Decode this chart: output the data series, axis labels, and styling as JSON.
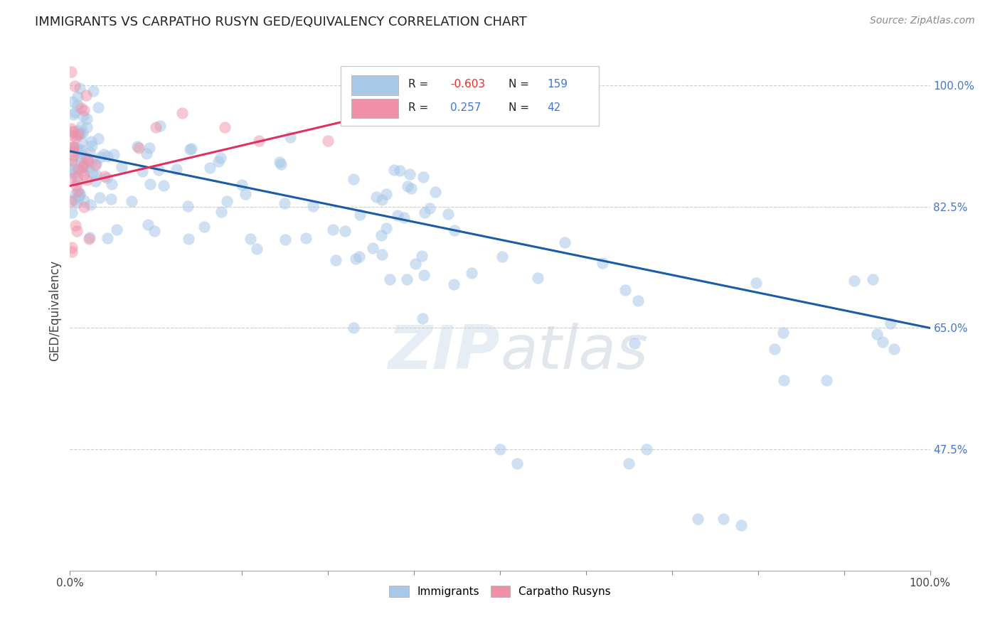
{
  "title": "IMMIGRANTS VS CARPATHO RUSYN GED/EQUIVALENCY CORRELATION CHART",
  "source": "Source: ZipAtlas.com",
  "ylabel": "GED/Equivalency",
  "xmin": 0.0,
  "xmax": 1.0,
  "ymin": 0.3,
  "ymax": 1.05,
  "yticks": [
    0.475,
    0.65,
    0.825,
    1.0
  ],
  "ytick_labels": [
    "47.5%",
    "65.0%",
    "82.5%",
    "100.0%"
  ],
  "blue_color": "#a8c8e8",
  "pink_color": "#f090a8",
  "trend_blue": "#1a5ca8",
  "trend_pink": "#e03060",
  "background_color": "#ffffff",
  "grid_color": "#cccccc",
  "title_color": "#222222",
  "source_color": "#888888",
  "blue_R": -0.603,
  "blue_N": 159,
  "pink_R": 0.257,
  "pink_N": 42,
  "blue_trend_x0": 0.0,
  "blue_trend_y0": 0.905,
  "blue_trend_x1": 1.0,
  "blue_trend_y1": 0.65,
  "pink_trend_x0": 0.0,
  "pink_trend_y0": 0.855,
  "pink_trend_x1": 0.36,
  "pink_trend_y1": 0.96
}
